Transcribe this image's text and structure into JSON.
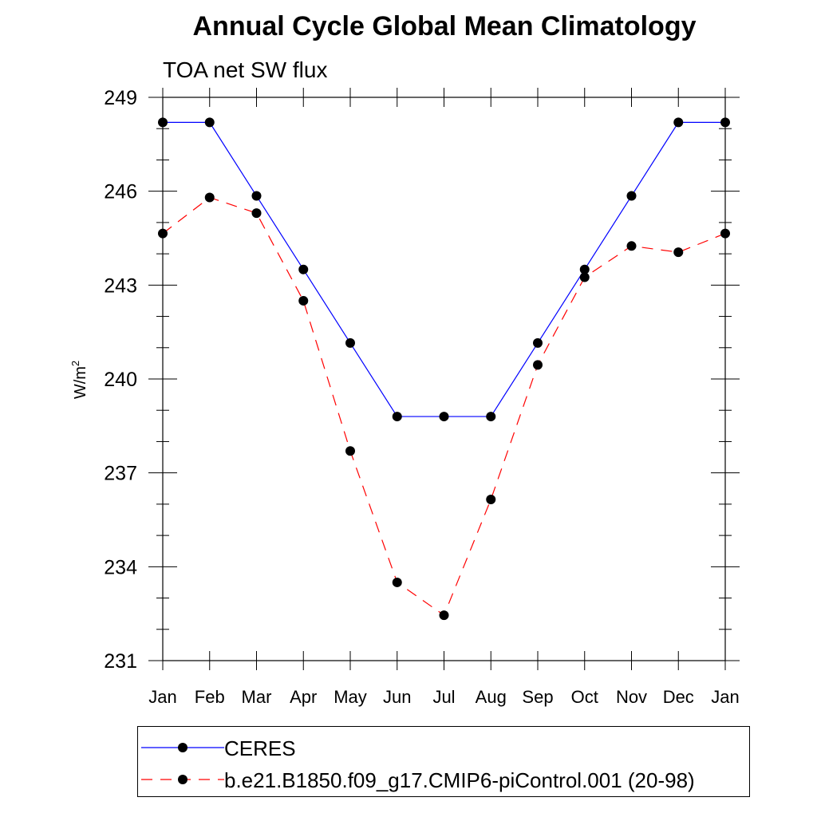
{
  "chart_data": {
    "type": "line",
    "title": "Annual Cycle Global Mean Climatology",
    "subtitle": "TOA net SW flux",
    "ylabel": "W/m",
    "ylabel_sup": "2",
    "xlabel": "",
    "categories": [
      "Jan",
      "Feb",
      "Mar",
      "Apr",
      "May",
      "Jun",
      "Jul",
      "Aug",
      "Sep",
      "Oct",
      "Nov",
      "Dec",
      "Jan"
    ],
    "yticks": [
      231,
      234,
      237,
      240,
      243,
      246,
      249
    ],
    "ylim": [
      231,
      249
    ],
    "grid": false,
    "legend_position": "bottom",
    "series": [
      {
        "name": "CERES",
        "color": "#0000ff",
        "style": "solid",
        "marker": "filled-circle",
        "values": [
          248.2,
          248.2,
          245.85,
          243.5,
          241.15,
          238.8,
          238.8,
          238.8,
          241.15,
          243.5,
          245.85,
          248.2,
          248.2
        ]
      },
      {
        "name": "b.e21.B1850.f09_g17.CMIP6-piControl.001 (20-98)",
        "color": "#ff0000",
        "style": "dashed",
        "marker": "filled-circle",
        "values": [
          244.65,
          245.8,
          245.3,
          242.5,
          237.7,
          233.5,
          232.45,
          236.15,
          240.45,
          243.25,
          244.25,
          244.05,
          244.65
        ]
      }
    ]
  }
}
